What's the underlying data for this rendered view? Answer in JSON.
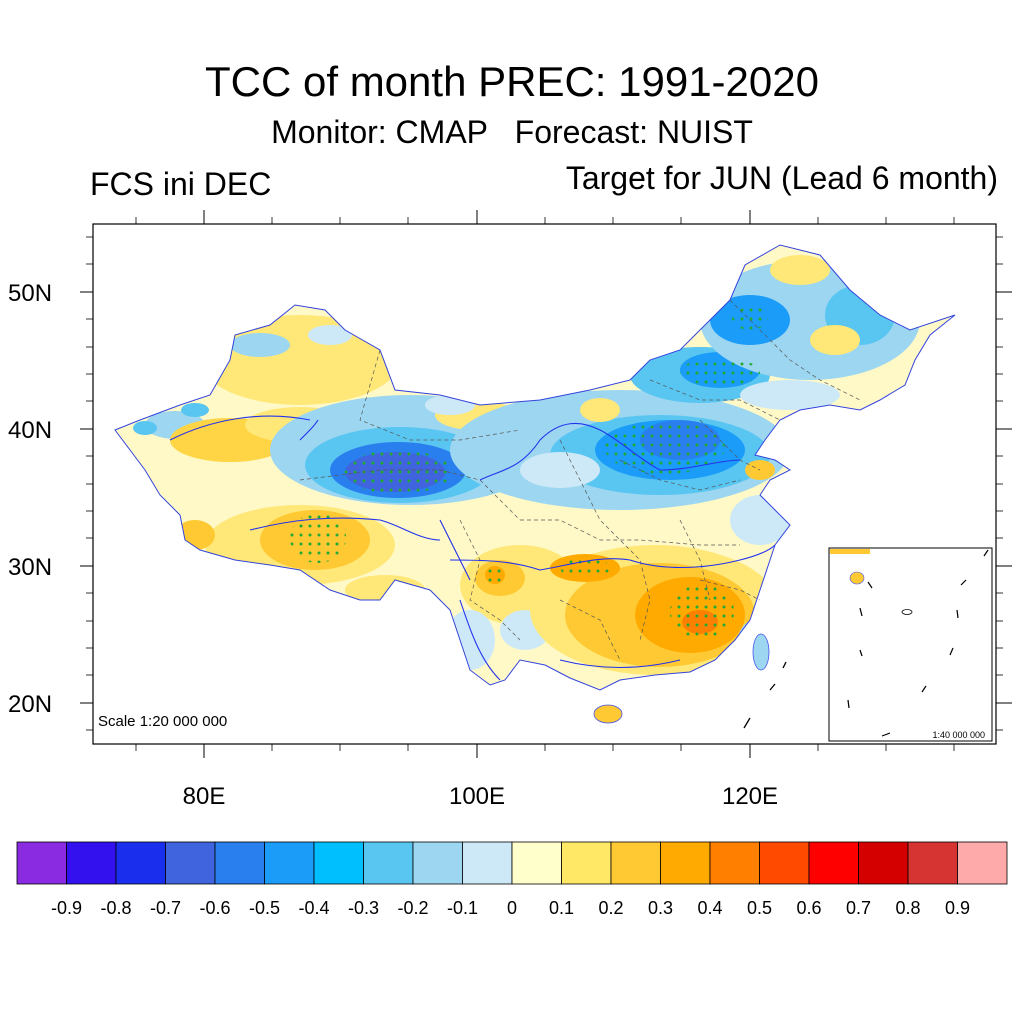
{
  "title": "TCC of month PREC: 1991-2020",
  "subtitle_monitor": "Monitor: CMAP",
  "subtitle_forecast": "Forecast: NUIST",
  "left_label": "FCS ini DEC",
  "right_label": "Target for JUN (Lead 6 month)",
  "scale_main": "Scale 1:20 000 000",
  "scale_inset": "1:40 000 000",
  "lat_labels": [
    "50N",
    "40N",
    "30N",
    "20N"
  ],
  "lon_labels": [
    "80E",
    "100E",
    "120E"
  ],
  "colorbar": {
    "colors": [
      "#8a2be2",
      "#3311ee",
      "#1a2fee",
      "#3f64dd",
      "#2a7fee",
      "#1a9cf8",
      "#00bfff",
      "#59c6f2",
      "#9dd6f0",
      "#cde9f7",
      "#ffffcc",
      "#ffe866",
      "#ffc933",
      "#ffaa00",
      "#ff7f00",
      "#ff4a00",
      "#ff0000",
      "#d40000",
      "#d63333",
      "#ffaaaa"
    ],
    "labels": [
      "-0.9",
      "-0.8",
      "-0.7",
      "-0.6",
      "-0.5",
      "-0.4",
      "-0.3",
      "-0.2",
      "-0.1",
      "0",
      "0.1",
      "0.2",
      "0.3",
      "0.4",
      "0.5",
      "0.6",
      "0.7",
      "0.8",
      "0.9"
    ]
  },
  "regions": [
    {
      "name": "east-china-south-positive",
      "value": 0.4
    },
    {
      "name": "hunan-jiangxi-core",
      "value": 0.5
    },
    {
      "name": "qinghai-negative-core",
      "value": -0.7
    },
    {
      "name": "north-china-negative",
      "value": -0.6
    },
    {
      "name": "northeast-negative",
      "value": -0.5
    },
    {
      "name": "tibet-positive",
      "value": 0.3
    },
    {
      "name": "sichuan-positive",
      "value": 0.3
    }
  ]
}
